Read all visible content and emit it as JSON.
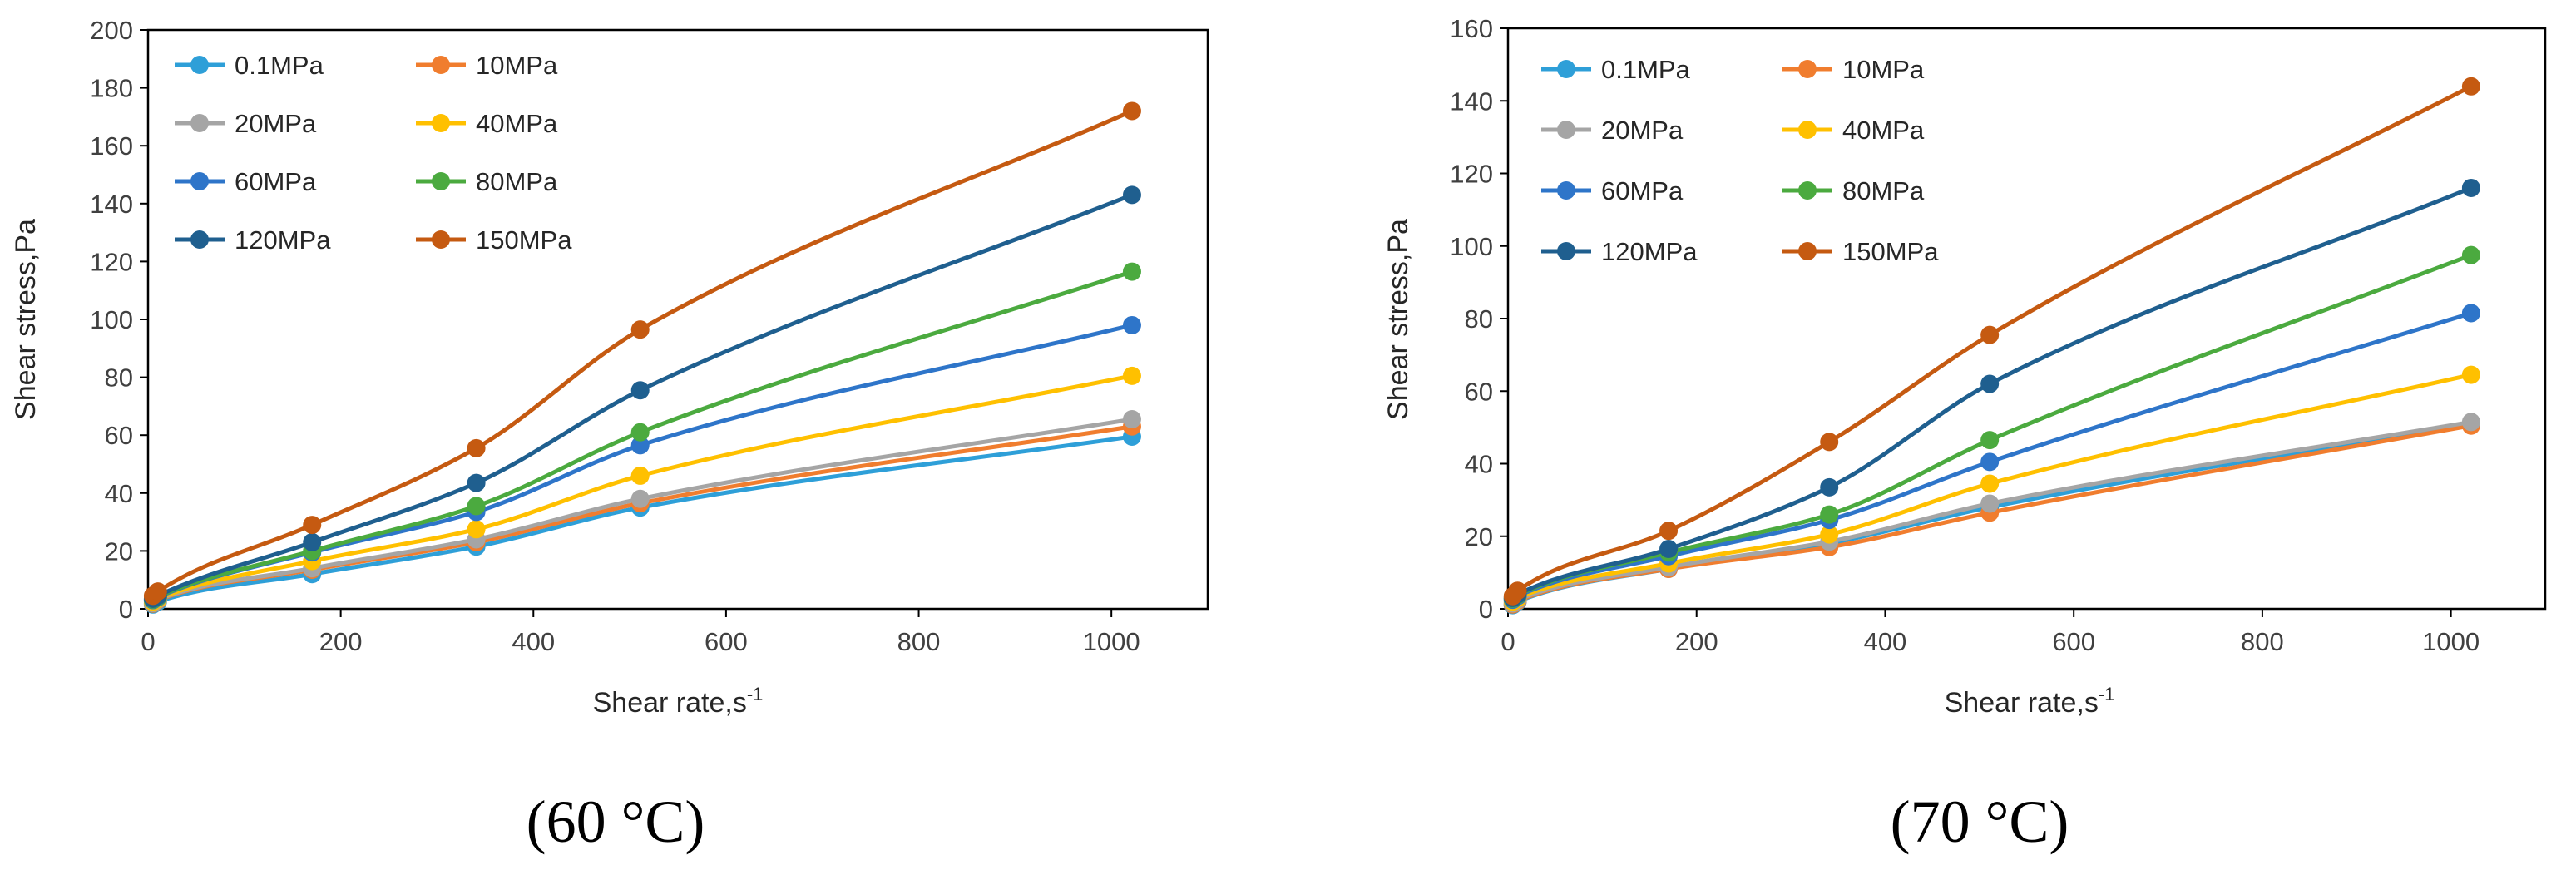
{
  "chart_data": [
    {
      "type": "line",
      "title": "",
      "caption": "(60 °C)",
      "xlabel": "Shear rate,s",
      "xlabel_superscript": "-1",
      "ylabel": "Shear stress,Pa",
      "xlim": [
        0,
        1100
      ],
      "ylim": [
        0,
        200
      ],
      "xticks": [
        "0",
        "200",
        "400",
        "600",
        "800",
        "1000"
      ],
      "yticks": [
        "0",
        "20",
        "40",
        "60",
        "80",
        "100",
        "120",
        "140",
        "160",
        "180",
        "200"
      ],
      "legend_position": "top-left",
      "x": [
        5.1,
        10.2,
        170.3,
        340.7,
        510.9,
        1021.4
      ],
      "series": [
        {
          "name": "0.1MPa",
          "color": "#2E9FD8",
          "values": [
            1.5,
            2.5,
            12.0,
            21.5,
            35.0,
            59.5
          ]
        },
        {
          "name": "10MPa",
          "color": "#F07D2E",
          "values": [
            1.8,
            3.0,
            13.5,
            23.0,
            36.5,
            63.0
          ]
        },
        {
          "name": "20MPa",
          "color": "#A5A5A5",
          "values": [
            2.0,
            3.2,
            14.0,
            24.0,
            38.0,
            65.5
          ]
        },
        {
          "name": "40MPa",
          "color": "#FFC000",
          "values": [
            2.5,
            3.5,
            16.5,
            27.5,
            46.0,
            80.5
          ]
        },
        {
          "name": "60MPa",
          "color": "#2E75C9",
          "values": [
            3.0,
            4.0,
            19.5,
            33.5,
            56.5,
            98.0
          ]
        },
        {
          "name": "80MPa",
          "color": "#4BAA3F",
          "values": [
            3.2,
            4.2,
            20.0,
            35.5,
            61.0,
            116.5
          ]
        },
        {
          "name": "120MPa",
          "color": "#1F5F8F",
          "values": [
            3.5,
            4.5,
            23.0,
            43.5,
            75.5,
            143.0
          ]
        },
        {
          "name": "150MPa",
          "color": "#C55A11",
          "values": [
            4.5,
            6.0,
            29.0,
            55.5,
            96.5,
            172.0
          ]
        }
      ]
    },
    {
      "type": "line",
      "title": "",
      "caption": "(70 °C)",
      "xlabel": "Shear rate,s",
      "xlabel_superscript": "-1",
      "ylabel": "Shear stress,Pa",
      "xlim": [
        0,
        1100
      ],
      "ylim": [
        0,
        160
      ],
      "xticks": [
        "0",
        "200",
        "400",
        "600",
        "800",
        "1000"
      ],
      "yticks": [
        "0",
        "20",
        "40",
        "60",
        "80",
        "100",
        "120",
        "140",
        "160"
      ],
      "legend_position": "top-left",
      "x": [
        5.1,
        10.2,
        170.3,
        340.7,
        510.9,
        1021.4
      ],
      "series": [
        {
          "name": "0.1MPa",
          "color": "#2E9FD8",
          "values": [
            1.0,
            2.0,
            11.0,
            18.0,
            28.0,
            51.0
          ]
        },
        {
          "name": "10MPa",
          "color": "#F07D2E",
          "values": [
            1.2,
            2.2,
            11.0,
            17.0,
            26.5,
            50.5
          ]
        },
        {
          "name": "20MPa",
          "color": "#A5A5A5",
          "values": [
            1.5,
            2.5,
            11.5,
            18.5,
            29.0,
            51.5
          ]
        },
        {
          "name": "40MPa",
          "color": "#FFC000",
          "values": [
            2.0,
            3.0,
            12.5,
            20.5,
            34.5,
            64.5
          ]
        },
        {
          "name": "60MPa",
          "color": "#2E75C9",
          "values": [
            2.5,
            3.5,
            14.5,
            24.5,
            40.5,
            81.5
          ]
        },
        {
          "name": "80MPa",
          "color": "#4BAA3F",
          "values": [
            2.8,
            3.8,
            15.5,
            26.0,
            46.5,
            97.5
          ]
        },
        {
          "name": "120MPa",
          "color": "#1F5F8F",
          "values": [
            3.0,
            4.0,
            16.5,
            33.5,
            62.0,
            116.0
          ]
        },
        {
          "name": "150MPa",
          "color": "#C55A11",
          "values": [
            3.5,
            5.0,
            21.5,
            46.0,
            75.5,
            144.0
          ]
        }
      ]
    }
  ]
}
